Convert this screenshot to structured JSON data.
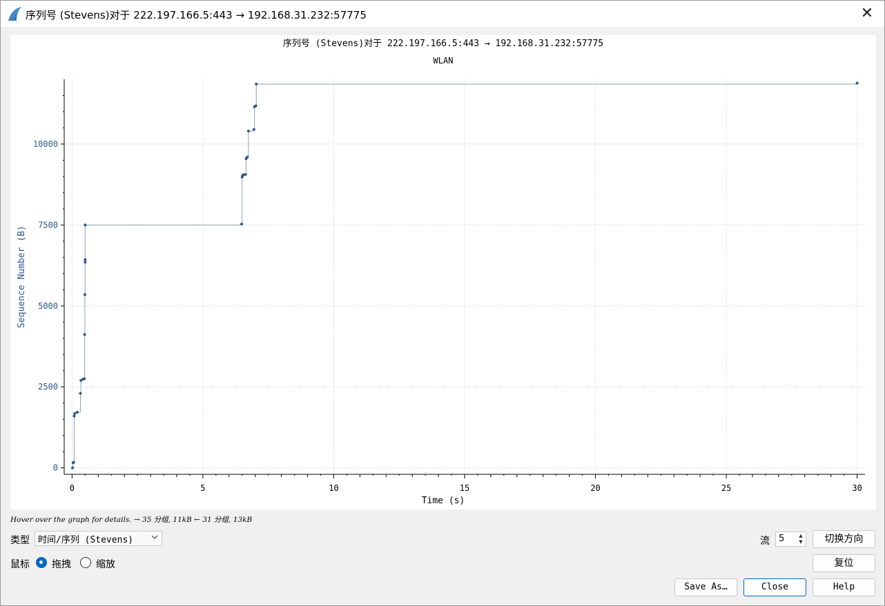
{
  "window": {
    "title": "序列号 (Stevens)对于 222.197.166.5:443 → 192.168.31.232:57775",
    "close_glyph": "✕"
  },
  "chart_data": {
    "type": "line",
    "title": "序列号 (Stevens)对于 222.197.166.5:443 → 192.168.31.232:57775",
    "subtitle": "WLAN",
    "xlabel": "Time (s)",
    "ylabel": "Sequence Number (B)",
    "xlim": [
      -0.3,
      30.3
    ],
    "ylim": [
      -200,
      12000
    ],
    "x_ticks": [
      0,
      5,
      10,
      15,
      20,
      25,
      30
    ],
    "y_ticks": [
      0,
      2500,
      5000,
      7500,
      10000
    ],
    "y_tick_labels": [
      "0",
      "2500",
      "5000",
      "7500",
      "10000"
    ],
    "grid": true,
    "step": true,
    "series_color": "#2f5889",
    "line_color": "#8aa2bd",
    "points": [
      [
        0.02,
        0
      ],
      [
        0.04,
        160
      ],
      [
        0.06,
        170
      ],
      [
        0.08,
        1600
      ],
      [
        0.1,
        1680
      ],
      [
        0.2,
        1720
      ],
      [
        0.32,
        2300
      ],
      [
        0.34,
        2700
      ],
      [
        0.42,
        2740
      ],
      [
        0.47,
        2750
      ],
      [
        0.48,
        4120
      ],
      [
        0.49,
        5350
      ],
      [
        0.5,
        6350
      ],
      [
        0.5,
        6430
      ],
      [
        0.5,
        7500
      ],
      [
        6.48,
        7530
      ],
      [
        6.5,
        8980
      ],
      [
        6.52,
        9030
      ],
      [
        6.55,
        9050
      ],
      [
        6.63,
        9060
      ],
      [
        6.65,
        9550
      ],
      [
        6.7,
        9600
      ],
      [
        6.74,
        10400
      ],
      [
        6.95,
        10450
      ],
      [
        6.97,
        11150
      ],
      [
        7.02,
        11180
      ],
      [
        7.04,
        11850
      ],
      [
        30.0,
        11880
      ]
    ]
  },
  "hint": {
    "text": "Hover over the graph for details. → 35 分组, 11kB ← 31 分组, 13kB"
  },
  "controls": {
    "type_label": "类型",
    "type_value": "时间/序列 (Stevens)",
    "mouse_label": "鼠标",
    "drag_label": "拖拽",
    "zoom_label": "缩放",
    "stream_label": "流",
    "stream_value": "5",
    "spin_up": "▲",
    "spin_down": "▼"
  },
  "buttons": {
    "switch_direction": "切换方向",
    "reset": "复位",
    "save_as": "Save As…",
    "close": "Close",
    "help": "Help"
  }
}
